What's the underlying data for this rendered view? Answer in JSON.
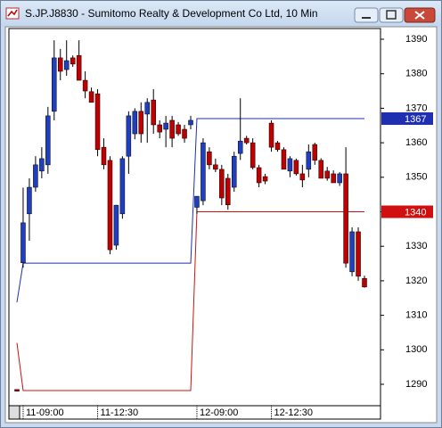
{
  "chart_data": {
    "type": "candlestick",
    "title": "S.JP.J8830 - Sumitomo Realty & Development Co Ltd, 10 Min",
    "up_color": "#1f3fc0",
    "down_color": "#c00000",
    "categories": [
      null,
      "11-09:00",
      null,
      null,
      null,
      null,
      null,
      null,
      null,
      null,
      null,
      null,
      null,
      "11-12:30",
      null,
      null,
      null,
      null,
      null,
      null,
      null,
      null,
      null,
      null,
      null,
      null,
      null,
      null,
      null,
      "12-09:00",
      null,
      null,
      null,
      null,
      null,
      null,
      null,
      null,
      null,
      null,
      null,
      "12-12:30",
      null,
      null,
      null,
      null,
      null,
      null,
      null,
      null,
      null,
      null,
      null,
      null,
      null,
      null,
      null
    ],
    "open": [
      1288.5,
      1325.2,
      1339.4,
      1347.1,
      1351.8,
      1353.6,
      1369.1,
      1384.6,
      1381.2,
      1384.6,
      1385.3,
      1378.1,
      1374.8,
      1374.2,
      1358.7,
      1354.9,
      1330.3,
      1339.4,
      1356.1,
      1362.6,
      1369.1,
      1368.3,
      1372.4,
      1365.2,
      1363.9,
      1366.5,
      1365.2,
      1363.9,
      1365.2,
      1341.3,
      1343.2,
      1357.4,
      1353.6,
      1352.3,
      1349.7,
      1347.1,
      1356.9,
      1361.3,
      1360,
      1352.8,
      1350.2,
      1365.7,
      1360,
      1358,
      1351.8,
      1354.9,
      1351,
      1352.3,
      1359.5,
      1354.9,
      1351.8,
      1351,
      1348.4,
      1351,
      1322.6,
      1334.2,
      1320.7
    ],
    "high": [
      1288.5,
      1347,
      1349.7,
      1356.1,
      1358.7,
      1370.4,
      1389.7,
      1387.2,
      1389.7,
      1385.3,
      1389.7,
      1380.7,
      1376,
      1375.5,
      1361.3,
      1356.1,
      1342,
      1356.1,
      1369.1,
      1370,
      1371.7,
      1372.9,
      1375.5,
      1366.5,
      1367.8,
      1367.8,
      1366,
      1365.2,
      1367.8,
      1344.5,
      1361.3,
      1358.7,
      1355.4,
      1353.6,
      1351,
      1357.4,
      1372.9,
      1362,
      1361.3,
      1353.6,
      1351,
      1366.5,
      1360.5,
      1358.7,
      1356.1,
      1355.4,
      1353.6,
      1359.5,
      1360,
      1355.5,
      1353,
      1352,
      1351.5,
      1358.7,
      1335.5,
      1335.5,
      1321.5
    ],
    "low": [
      1288,
      1323.8,
      1331.6,
      1345.8,
      1349.7,
      1351,
      1366.5,
      1378.1,
      1379.4,
      1382,
      1378.1,
      1372.9,
      1371.7,
      1356.1,
      1352.3,
      1327.7,
      1329,
      1338,
      1351,
      1361,
      1360,
      1360,
      1362.6,
      1361.3,
      1358.7,
      1358.7,
      1362,
      1360,
      1363.9,
      1339.4,
      1341.9,
      1352.3,
      1351.5,
      1341.9,
      1340.6,
      1345.8,
      1355,
      1359.5,
      1352.3,
      1347.1,
      1348,
      1357.4,
      1357.4,
      1352.3,
      1350,
      1350.5,
      1347.1,
      1350,
      1353.6,
      1349.7,
      1349,
      1348.4,
      1347.5,
      1323.8,
      1321.3,
      1320,
      1318
    ],
    "close": [
      1288,
      1336.8,
      1347.1,
      1353.6,
      1355.4,
      1367.8,
      1384.6,
      1380.7,
      1383.8,
      1382.8,
      1378.1,
      1375,
      1371.7,
      1358,
      1353.6,
      1329,
      1341.9,
      1355.4,
      1367.8,
      1369.1,
      1362.6,
      1371.7,
      1365.2,
      1363.1,
      1365.7,
      1361.3,
      1362.6,
      1361.3,
      1366.5,
      1344.5,
      1360,
      1353.6,
      1352.3,
      1344,
      1342,
      1356.1,
      1360.5,
      1360,
      1352.8,
      1348.4,
      1348.9,
      1358.7,
      1358,
      1352.3,
      1355.4,
      1351,
      1349.2,
      1357.4,
      1354.9,
      1349.7,
      1349.7,
      1348.4,
      1351,
      1325.1,
      1334.2,
      1321.3,
      1318.2
    ],
    "overlays": [
      {
        "color": "#1f2fb0",
        "values": [
          1313.8,
          1325.1,
          1325.1,
          1325.1,
          1325.1,
          1325.1,
          1325.1,
          1325.1,
          1325.1,
          1325.1,
          1325.1,
          1325.1,
          1325.1,
          1325.1,
          1325.1,
          1325.1,
          1325.1,
          1325.1,
          1325.1,
          1325.1,
          1325.1,
          1325.1,
          1325.1,
          1325.1,
          1325.1,
          1325.1,
          1325.1,
          1325.1,
          1325.1,
          1367,
          1367,
          1367,
          1367,
          1367,
          1367,
          1367,
          1367,
          1367,
          1367,
          1367,
          1367,
          1367,
          1367,
          1367,
          1367,
          1367,
          1367,
          1367,
          1367,
          1367,
          1367,
          1367,
          1367,
          1367,
          1367,
          1367,
          1367
        ]
      },
      {
        "color": "#d01010",
        "values": [
          1302,
          1288.2,
          1288.2,
          1288.2,
          1288.2,
          1288.2,
          1288.2,
          1288.2,
          1288.2,
          1288.2,
          1288.2,
          1288.2,
          1288.2,
          1288.2,
          1288.2,
          1288.2,
          1288.2,
          1288.2,
          1288.2,
          1288.2,
          1288.2,
          1288.2,
          1288.2,
          1288.2,
          1288.2,
          1288.2,
          1288.2,
          1288.2,
          1288.2,
          1340,
          1340,
          1340,
          1340,
          1340,
          1340,
          1340,
          1340,
          1340,
          1340,
          1340,
          1340,
          1340,
          1340,
          1340,
          1340,
          1340,
          1340,
          1340,
          1340,
          1340,
          1340,
          1340,
          1340,
          1340,
          1340,
          1340,
          1340
        ]
      }
    ],
    "ylim": [
      1283.8,
      1393.1
    ],
    "yticks": [
      1290,
      1300,
      1310,
      1320,
      1330,
      1340,
      1350,
      1360,
      1370,
      1380,
      1390
    ]
  }
}
